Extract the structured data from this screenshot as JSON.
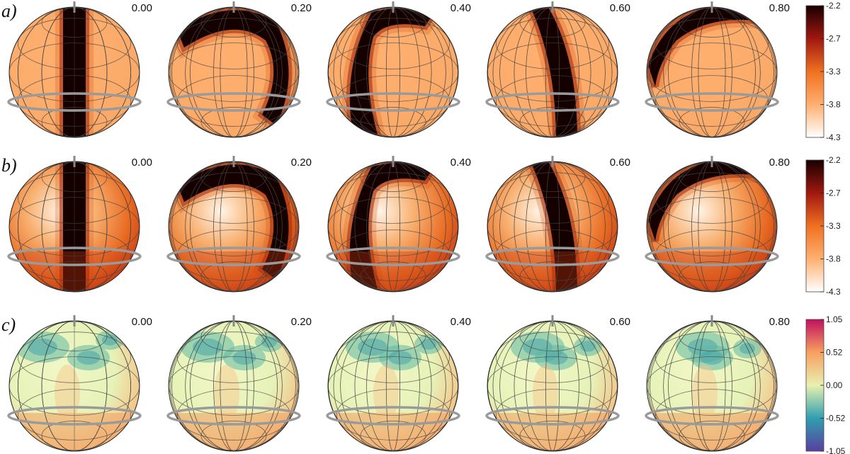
{
  "phases": [
    "0.00",
    "0.20",
    "0.40",
    "0.60",
    "0.80"
  ],
  "rows": [
    {
      "label": "a)",
      "colormap": "heat",
      "pattern": "band",
      "colorbar_ticks": [
        "-2.2",
        "-2.7",
        "-3.3",
        "-3.8",
        "-4.3"
      ]
    },
    {
      "label": "b)",
      "colormap": "heat",
      "pattern": "band-shaded",
      "colorbar_ticks": [
        "-2.2",
        "-2.7",
        "-3.3",
        "-3.8",
        "-4.3"
      ]
    },
    {
      "label": "c)",
      "colormap": "diverging",
      "pattern": "residual",
      "colorbar_ticks": [
        "1.05",
        "0.52",
        "0.00",
        "-0.52",
        "-1.05"
      ]
    }
  ],
  "colors": {
    "heat": [
      "#ffffff",
      "#ffb070",
      "#f07020",
      "#a01810",
      "#180000"
    ],
    "diverging": [
      "#5a3fa0",
      "#2f9fb0",
      "#e8f0b0",
      "#f7a060",
      "#c01060"
    ],
    "grid": "#444444",
    "equator": "#9a9a9a"
  }
}
